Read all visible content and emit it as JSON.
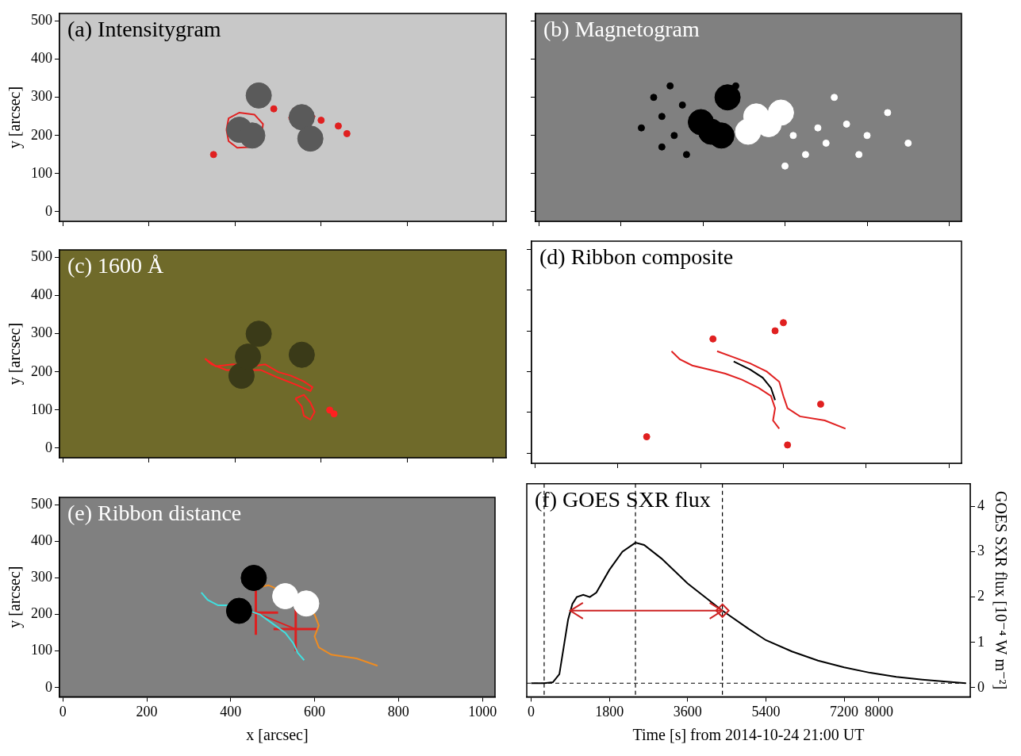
{
  "chart_data": [
    {
      "type": "image",
      "title": "(a) Intensitygram",
      "color": "#c8c8c8",
      "xlim": [
        -8,
        1030
      ],
      "ylim": [
        -25,
        520
      ],
      "xticks": [
        0,
        200,
        400,
        600,
        800,
        1000
      ],
      "yticks": [
        0,
        100,
        200,
        300,
        400,
        500
      ],
      "y_label": "y [arcsec]",
      "tick_labels": "y",
      "series": [
        {
          "type": "scatter",
          "color": "#5a5a5a",
          "marker": "circle",
          "x": [
            410,
            440,
            455,
            555,
            575
          ],
          "y": [
            215,
            200,
            305,
            248,
            192
          ]
        },
        {
          "type": "scatter",
          "color": "#202020",
          "marker": "dot",
          "x": [
            405,
            440,
            455,
            557,
            577
          ],
          "y": [
            220,
            200,
            307,
            250,
            190
          ]
        },
        {
          "type": "line",
          "color": "#e02020",
          "x": [
            380,
            385,
            410,
            445,
            465,
            460,
            440,
            405,
            385,
            380
          ],
          "y": [
            215,
            245,
            260,
            255,
            230,
            190,
            170,
            168,
            185,
            215
          ]
        },
        {
          "type": "line",
          "color": "#e02020",
          "x": [
            430,
            440,
            470,
            475,
            455,
            430
          ],
          "y": [
            300,
            320,
            322,
            300,
            290,
            300
          ]
        },
        {
          "type": "line",
          "color": "#e02020",
          "x": [
            525,
            535,
            565,
            585,
            575,
            545,
            525
          ],
          "y": [
            245,
            270,
            272,
            250,
            225,
            222,
            245
          ]
        },
        {
          "type": "scatter",
          "color": "#e02020",
          "marker": "dot",
          "x": [
            600,
            640,
            660,
            350,
            490
          ],
          "y": [
            240,
            225,
            205,
            150,
            270
          ]
        }
      ]
    },
    {
      "type": "image",
      "title": "(b) Magnetogram",
      "color": "#808080",
      "xlim": [
        -8,
        1030
      ],
      "ylim": [
        -25,
        520
      ],
      "xticks": [
        0,
        200,
        400,
        600,
        800,
        1000
      ],
      "yticks": [
        0,
        100,
        200,
        300,
        400,
        500
      ],
      "tick_labels": false,
      "series": [
        {
          "type": "scatter",
          "color": "#000000",
          "marker": "circle",
          "x": [
            420,
            445,
            460,
            395
          ],
          "y": [
            210,
            200,
            300,
            235
          ]
        },
        {
          "type": "scatter",
          "color": "#000000",
          "marker": "dot",
          "x": [
            300,
            330,
            350,
            360,
            280,
            320,
            250,
            300,
            480
          ],
          "y": [
            250,
            200,
            280,
            150,
            300,
            330,
            220,
            170,
            330
          ]
        },
        {
          "type": "scatter",
          "color": "#ffffff",
          "marker": "circle",
          "x": [
            530,
            560,
            510,
            590
          ],
          "y": [
            250,
            230,
            210,
            260
          ]
        },
        {
          "type": "scatter",
          "color": "#ffffff",
          "marker": "dot",
          "x": [
            620,
            680,
            700,
            750,
            800,
            650,
            720,
            850,
            900,
            780,
            600
          ],
          "y": [
            200,
            220,
            180,
            230,
            200,
            150,
            300,
            260,
            180,
            150,
            120
          ]
        }
      ]
    },
    {
      "type": "image",
      "title": "(c) 1600 Å",
      "color": "#6f6a2a",
      "xlim": [
        -8,
        1030
      ],
      "ylim": [
        -25,
        520
      ],
      "xticks": [
        0,
        200,
        400,
        600,
        800,
        1000
      ],
      "yticks": [
        0,
        100,
        200,
        300,
        400,
        500
      ],
      "y_label": "y [arcsec]",
      "tick_labels": "y",
      "series": [
        {
          "type": "scatter",
          "color": "#3a3a18",
          "marker": "circle",
          "x": [
            415,
            455,
            555,
            430
          ],
          "y": [
            190,
            300,
            245,
            240
          ]
        },
        {
          "type": "line",
          "color": "#ff2020",
          "x": [
            330,
            355,
            395,
            440,
            470,
            500,
            530,
            560,
            580,
            575,
            545,
            500,
            460,
            420,
            380,
            345,
            330
          ],
          "y": [
            235,
            215,
            220,
            215,
            220,
            200,
            190,
            175,
            160,
            150,
            165,
            185,
            205,
            205,
            205,
            220,
            235
          ]
        },
        {
          "type": "line",
          "color": "#ff2020",
          "x": [
            540,
            555,
            560,
            575,
            585,
            575,
            560,
            540
          ],
          "y": [
            130,
            110,
            85,
            75,
            95,
            120,
            140,
            130
          ]
        },
        {
          "type": "scatter",
          "color": "#ff2020",
          "marker": "dot",
          "x": [
            620,
            630
          ],
          "y": [
            100,
            90
          ]
        }
      ]
    },
    {
      "type": "image",
      "title": "(d) Ribbon composite",
      "color": "#ffffff",
      "xlim": [
        -8,
        1030
      ],
      "ylim": [
        -25,
        520
      ],
      "xticks": [
        0,
        200,
        400,
        600,
        800,
        1000
      ],
      "yticks": [
        0,
        100,
        200,
        300,
        400,
        500
      ],
      "tick_labels": false,
      "series": [
        {
          "type": "line",
          "color": "#e02020",
          "x": [
            330,
            350,
            380,
            420,
            460,
            500,
            540,
            570,
            580,
            575,
            590
          ],
          "y": [
            250,
            230,
            215,
            205,
            195,
            180,
            160,
            140,
            110,
            80,
            60
          ]
        },
        {
          "type": "line",
          "color": "#e02020",
          "x": [
            440,
            480,
            520,
            560,
            590,
            600,
            610,
            640,
            700,
            750
          ],
          "y": [
            250,
            235,
            220,
            200,
            175,
            140,
            110,
            90,
            80,
            60
          ]
        },
        {
          "type": "line",
          "color": "#000000",
          "x": [
            480,
            520,
            550,
            570,
            580
          ],
          "y": [
            225,
            205,
            185,
            160,
            130
          ]
        },
        {
          "type": "scatter",
          "color": "#e02020",
          "marker": "dot",
          "x": [
            580,
            600,
            430,
            690,
            270,
            610
          ],
          "y": [
            300,
            320,
            280,
            120,
            40,
            20
          ]
        }
      ]
    },
    {
      "type": "image",
      "title": "(e) Ribbon distance",
      "color": "#808080",
      "xlim": [
        -8,
        1030
      ],
      "ylim": [
        -25,
        520
      ],
      "xticks": [
        0,
        200,
        400,
        600,
        800,
        1000
      ],
      "yticks": [
        0,
        100,
        200,
        300,
        400,
        500
      ],
      "x_label": "x [arcsec]",
      "y_label": "y [arcsec]",
      "series": [
        {
          "type": "scatter",
          "color": "#000000",
          "marker": "circle",
          "x": [
            420,
            455
          ],
          "y": [
            210,
            300
          ]
        },
        {
          "type": "scatter",
          "color": "#ffffff",
          "marker": "circle",
          "x": [
            530,
            580
          ],
          "y": [
            250,
            230
          ]
        },
        {
          "type": "line",
          "color": "#40e0e0",
          "x": [
            330,
            345,
            370,
            400,
            430,
            470,
            500,
            530,
            550,
            560,
            575
          ],
          "y": [
            260,
            240,
            225,
            225,
            215,
            200,
            175,
            150,
            120,
            95,
            75
          ]
        },
        {
          "type": "line",
          "color": "#f08c20",
          "x": [
            450,
            490,
            530,
            570,
            600,
            610,
            600,
            610,
            640,
            700,
            750
          ],
          "y": [
            270,
            280,
            260,
            230,
            200,
            170,
            140,
            110,
            90,
            80,
            60
          ]
        },
        {
          "type": "line",
          "color": "#dd2020",
          "marker": "cross",
          "x": [
            460,
            555
          ],
          "y": [
            205,
            160
          ]
        }
      ]
    },
    {
      "type": "line",
      "title": "(f) GOES SXR flux",
      "color": "#000000",
      "x_label": "Time [s] from 2014-10-24 21:00 UT",
      "y_label": "GOES SXR flux [10⁻⁴ W m⁻²]",
      "xlim": [
        -100,
        10100
      ],
      "ylim": [
        -0.2,
        4.5
      ],
      "xticks": [
        0,
        1800,
        3600,
        5400,
        7200,
        8000
      ],
      "yticks": [
        0,
        1,
        2,
        3,
        4
      ],
      "x": [
        0,
        300,
        500,
        650,
        750,
        850,
        950,
        1050,
        1200,
        1350,
        1500,
        1800,
        2100,
        2400,
        2600,
        3000,
        3600,
        4200,
        4400,
        5000,
        5400,
        6000,
        6600,
        7200,
        7800,
        8400,
        9000,
        9600,
        10000
      ],
      "values": [
        0.1,
        0.1,
        0.12,
        0.3,
        0.9,
        1.5,
        1.85,
        2.0,
        2.05,
        2.0,
        2.1,
        2.6,
        3.0,
        3.2,
        3.15,
        2.85,
        2.3,
        1.85,
        1.7,
        1.3,
        1.05,
        0.8,
        0.6,
        0.45,
        0.33,
        0.24,
        0.18,
        0.13,
        0.1
      ],
      "vlines": [
        300,
        2400,
        4400
      ],
      "hline": 0.1,
      "arrow": {
        "x": [
          900,
          4400
        ],
        "y": 1.7,
        "color": "#cc2222"
      }
    }
  ]
}
